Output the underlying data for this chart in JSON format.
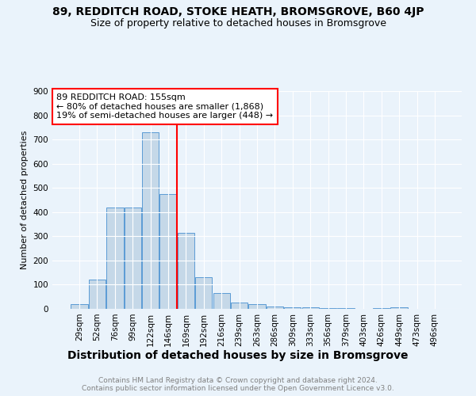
{
  "title1": "89, REDDITCH ROAD, STOKE HEATH, BROMSGROVE, B60 4JP",
  "title2": "Size of property relative to detached houses in Bromsgrove",
  "xlabel": "Distribution of detached houses by size in Bromsgrove",
  "ylabel": "Number of detached properties",
  "bar_labels": [
    "29sqm",
    "52sqm",
    "76sqm",
    "99sqm",
    "122sqm",
    "146sqm",
    "169sqm",
    "192sqm",
    "216sqm",
    "239sqm",
    "263sqm",
    "286sqm",
    "309sqm",
    "333sqm",
    "356sqm",
    "379sqm",
    "403sqm",
    "426sqm",
    "449sqm",
    "473sqm",
    "496sqm"
  ],
  "bar_values": [
    20,
    120,
    420,
    420,
    730,
    475,
    315,
    130,
    65,
    25,
    20,
    10,
    5,
    5,
    4,
    4,
    0,
    4,
    8,
    0,
    0
  ],
  "bar_color": "#c5d8e8",
  "bar_edge_color": "#5b9bd5",
  "vline_x": 6,
  "vline_color": "red",
  "annotation_text": "89 REDDITCH ROAD: 155sqm\n← 80% of detached houses are smaller (1,868)\n19% of semi-detached houses are larger (448) →",
  "annotation_box_color": "white",
  "annotation_box_edge_color": "red",
  "ylim": [
    0,
    900
  ],
  "yticks": [
    0,
    100,
    200,
    300,
    400,
    500,
    600,
    700,
    800,
    900
  ],
  "background_color": "#eaf3fb",
  "plot_bg_color": "#eaf3fb",
  "footer1": "Contains HM Land Registry data © Crown copyright and database right 2024.",
  "footer2": "Contains public sector information licensed under the Open Government Licence v3.0.",
  "title1_fontsize": 10,
  "title2_fontsize": 9,
  "xlabel_fontsize": 10,
  "ylabel_fontsize": 8,
  "tick_fontsize": 7.5,
  "annotation_fontsize": 8,
  "footer_fontsize": 6.5
}
